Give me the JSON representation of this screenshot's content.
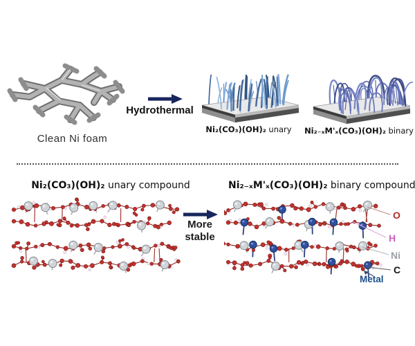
{
  "top_section": {
    "foam_label": "Clean Ni foam",
    "process_arrow_label": "Hydrothermal",
    "unary_sample": {
      "formula": "Ni₂(CO₃)(OH)₂",
      "suffix": " unary"
    },
    "binary_sample": {
      "formula": "Ni₂₋ₓM'ₓ(CO₃)(OH)₂",
      "suffix": " binary"
    }
  },
  "bottom_section": {
    "unary_title": {
      "formula": "Ni₂(CO₃)(OH)₂",
      "suffix": " unary compound"
    },
    "binary_title": {
      "formula": "Ni₂₋ₓM'ₓ(CO₃)(OH)₂",
      "suffix": " binary compound"
    },
    "arrow_label_line1": "More",
    "arrow_label_line2": "stable",
    "legend": {
      "o": {
        "label": "O",
        "color": "#b02c27"
      },
      "h": {
        "label": "H",
        "color": "#cf5fc2"
      },
      "ni": {
        "label": "Ni",
        "color": "#9ba1a6"
      },
      "c": {
        "label": "C",
        "color": "#141414"
      },
      "metal": {
        "label": "Metal",
        "color": "#1a4f8b"
      }
    }
  },
  "palette": {
    "arrow_navy": "#17265c",
    "foam_gray": "#a9a9a9",
    "unary_nanowire_blue": "#7fa8d9",
    "binary_nanowire_blue": "#6775bd",
    "oxygen_red": "#c23430",
    "bond_dark_red": "#8e2220",
    "nickel_gray": "#ced2d6",
    "metal_blue": "#30509f",
    "hydrogen_white": "#f7f1f4"
  }
}
